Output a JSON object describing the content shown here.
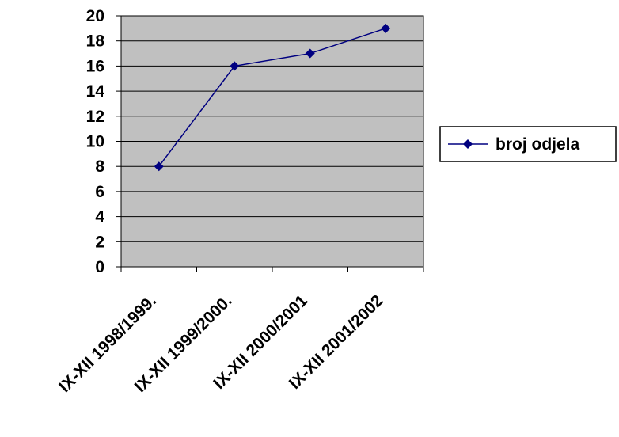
{
  "chart_data": {
    "type": "line",
    "categories": [
      "IX-XII 1998/1999.",
      "IX-XII 1999/2000.",
      "IX-XII 2000/2001",
      "IX-XII 2001/2002"
    ],
    "series": [
      {
        "name": "broj odjela",
        "values": [
          8,
          16,
          17,
          19
        ],
        "color": "#000080",
        "marker": "diamond"
      }
    ],
    "ylim": [
      0,
      20
    ],
    "yticks": [
      0,
      2,
      4,
      6,
      8,
      10,
      12,
      14,
      16,
      18,
      20
    ],
    "grid": true,
    "plot_background": "#c0c0c0",
    "legend_position": "right"
  }
}
